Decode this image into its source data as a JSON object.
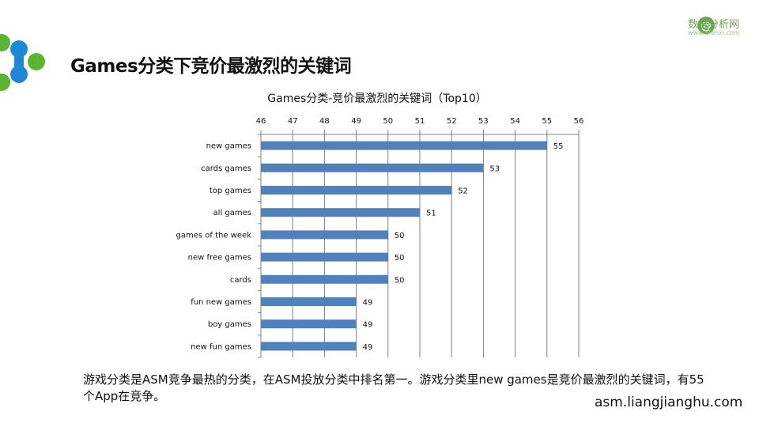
{
  "header": {
    "title": "Games分类下竞价最激烈的关键词",
    "brand_name": "数据分析网",
    "brand_url": "www.afenxi.com"
  },
  "chart_data": {
    "type": "bar",
    "orientation": "horizontal",
    "title": "Games分类-竞价最激烈的关键词（Top10）",
    "categories": [
      "new games",
      "cards games",
      "top games",
      "all games",
      "games of the week",
      "new free games",
      "cards",
      "fun new games",
      "boy games",
      "new fun games"
    ],
    "values": [
      55,
      53,
      52,
      51,
      50,
      50,
      50,
      49,
      49,
      49
    ],
    "xlim": [
      46,
      56
    ],
    "x_ticks": [
      46,
      47,
      48,
      49,
      50,
      51,
      52,
      53,
      54,
      55,
      56
    ],
    "x_axis_position": "top",
    "grid": true,
    "bar_color": "#4f81bd"
  },
  "footer": {
    "summary": "游戏分类是ASM竞争最热的分类，在ASM投放分类中排名第一。游戏分类里new games是竞价最激烈的关键词，有55个App在竞争。",
    "site": "asm.liangjianghu.com"
  },
  "colors": {
    "accent_green": "#5bb531",
    "accent_blue": "#1e88d6"
  }
}
